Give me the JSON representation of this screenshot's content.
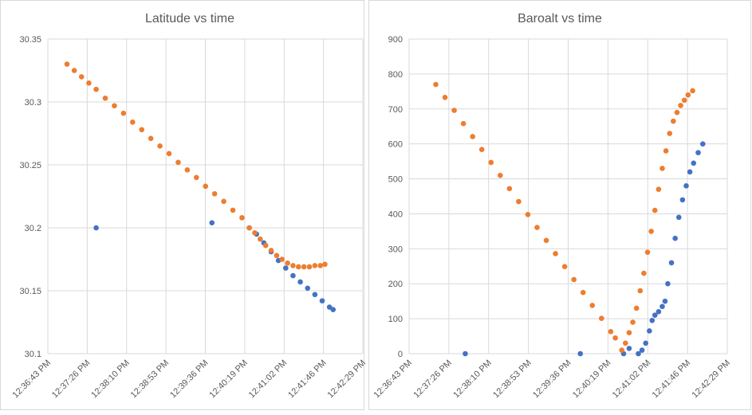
{
  "chart_data": [
    {
      "type": "scatter",
      "title": "Latitude vs time",
      "xlim": [
        45403,
        45748.6
      ],
      "xticks": [
        {
          "value": 45403,
          "label": "12:36:43 PM"
        },
        {
          "value": 45446.2,
          "label": "12:37:26 PM"
        },
        {
          "value": 45489.4,
          "label": "12:38:10 PM"
        },
        {
          "value": 45532.6,
          "label": "12:38:53 PM"
        },
        {
          "value": 45575.8,
          "label": "12:39:36 PM"
        },
        {
          "value": 45619,
          "label": "12:40:19 PM"
        },
        {
          "value": 45662.2,
          "label": "12:41:02 PM"
        },
        {
          "value": 45705.4,
          "label": "12:41:46 PM"
        },
        {
          "value": 45748.6,
          "label": "12:42:29 PM"
        }
      ],
      "ylim": [
        30.1,
        30.35
      ],
      "yticks": [
        30.1,
        30.15,
        30.2,
        30.25,
        30.3,
        30.35
      ],
      "grid": true,
      "series": [
        {
          "color": "#4472c4",
          "x": [
            45456,
            45583,
            45624,
            45632,
            45640,
            45648,
            45656,
            45664,
            45672,
            45680,
            45688,
            45696,
            45704,
            45712,
            45716
          ],
          "values": [
            30.2,
            30.204,
            30.2,
            30.195,
            30.188,
            30.181,
            30.174,
            30.168,
            30.162,
            30.157,
            30.152,
            30.147,
            30.142,
            30.137,
            30.135
          ]
        },
        {
          "color": "#ed7d31",
          "x": [
            45424,
            45432,
            45440,
            45448,
            45456,
            45466,
            45476,
            45486,
            45496,
            45506,
            45516,
            45526,
            45536,
            45546,
            45556,
            45566,
            45576,
            45586,
            45596,
            45606,
            45616,
            45624,
            45630,
            45636,
            45642,
            45648,
            45654,
            45660,
            45666,
            45672,
            45678,
            45684,
            45690,
            45696,
            45702,
            45707
          ],
          "values": [
            30.33,
            30.325,
            30.32,
            30.315,
            30.31,
            30.303,
            30.297,
            30.291,
            30.284,
            30.278,
            30.271,
            30.265,
            30.259,
            30.252,
            30.246,
            30.24,
            30.233,
            30.227,
            30.221,
            30.214,
            30.208,
            30.2,
            30.196,
            30.191,
            30.186,
            30.182,
            30.178,
            30.175,
            30.172,
            30.17,
            30.169,
            30.169,
            30.169,
            30.17,
            30.17,
            30.171
          ]
        }
      ]
    },
    {
      "type": "scatter",
      "title": "Baroalt vs time",
      "xlim": [
        45403,
        45748.6
      ],
      "xticks": [
        {
          "value": 45403,
          "label": "12:36:43 PM"
        },
        {
          "value": 45446.2,
          "label": "12:37:26 PM"
        },
        {
          "value": 45489.4,
          "label": "12:38:10 PM"
        },
        {
          "value": 45532.6,
          "label": "12:38:53 PM"
        },
        {
          "value": 45575.8,
          "label": "12:39:36 PM"
        },
        {
          "value": 45619,
          "label": "12:40:19 PM"
        },
        {
          "value": 45662.2,
          "label": "12:41:02 PM"
        },
        {
          "value": 45705.4,
          "label": "12:41:46 PM"
        },
        {
          "value": 45748.6,
          "label": "12:42:29 PM"
        }
      ],
      "ylim": [
        0,
        900
      ],
      "yticks": [
        0,
        100,
        200,
        300,
        400,
        500,
        600,
        700,
        800,
        900
      ],
      "grid": true,
      "series": [
        {
          "color": "#4472c4",
          "x": [
            45464,
            45589,
            45636,
            45642,
            45652,
            45656,
            45660,
            45664,
            45667,
            45670,
            45674,
            45678,
            45681,
            45684,
            45688,
            45692,
            45696,
            45700,
            45704,
            45708,
            45712,
            45717,
            45722
          ],
          "values": [
            0,
            0,
            0,
            15,
            0,
            10,
            30,
            65,
            95,
            110,
            120,
            135,
            150,
            200,
            260,
            330,
            390,
            440,
            480,
            520,
            545,
            575,
            600
          ]
        },
        {
          "color": "#ed7d31",
          "x": [
            45432,
            45442,
            45452,
            45462,
            45472,
            45482,
            45492,
            45502,
            45512,
            45522,
            45532,
            45542,
            45552,
            45562,
            45572,
            45582,
            45592,
            45602,
            45612,
            45622,
            45627,
            45634,
            45638,
            45642,
            45646,
            45650,
            45654,
            45658,
            45662,
            45666,
            45670,
            45674,
            45678,
            45682,
            45686,
            45690,
            45694,
            45698,
            45702,
            45706,
            45711
          ],
          "values": [
            770,
            733,
            696,
            658,
            621,
            584,
            547,
            510,
            472,
            435,
            398,
            361,
            324,
            286,
            249,
            212,
            175,
            138,
            101,
            63,
            45,
            10,
            30,
            60,
            90,
            130,
            180,
            230,
            290,
            350,
            410,
            470,
            530,
            580,
            630,
            665,
            690,
            710,
            725,
            740,
            752
          ]
        }
      ]
    }
  ]
}
